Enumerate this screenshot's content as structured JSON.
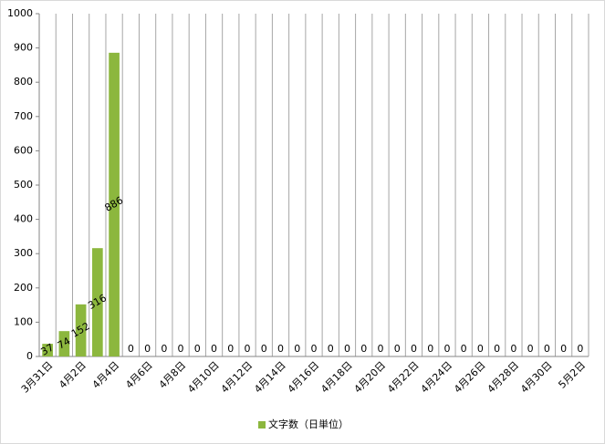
{
  "chart_data": {
    "type": "bar",
    "categories": [
      "3月31日",
      null,
      "4月2日",
      null,
      "4月4日",
      null,
      "4月6日",
      null,
      "4月8日",
      null,
      "4月10日",
      null,
      "4月12日",
      null,
      "4月14日",
      null,
      "4月16日",
      null,
      "4月18日",
      null,
      "4月20日",
      null,
      "4月22日",
      null,
      "4月24日",
      null,
      "4月26日",
      null,
      "4月28日",
      null,
      "4月30日",
      null,
      "5月2日"
    ],
    "series": [
      {
        "name": "文字数（日単位）",
        "color": "#8cb73e",
        "values": [
          37,
          74,
          152,
          316,
          886,
          0,
          0,
          0,
          0,
          0,
          0,
          0,
          0,
          0,
          0,
          0,
          0,
          0,
          0,
          0,
          0,
          0,
          0,
          0,
          0,
          0,
          0,
          0,
          0,
          0,
          0,
          0,
          0
        ]
      }
    ],
    "ylim": [
      0,
      1000
    ],
    "yticks": [
      0,
      100,
      200,
      300,
      400,
      500,
      600,
      700,
      800,
      900,
      1000
    ],
    "grid": "vertical",
    "legend": "bottom"
  }
}
